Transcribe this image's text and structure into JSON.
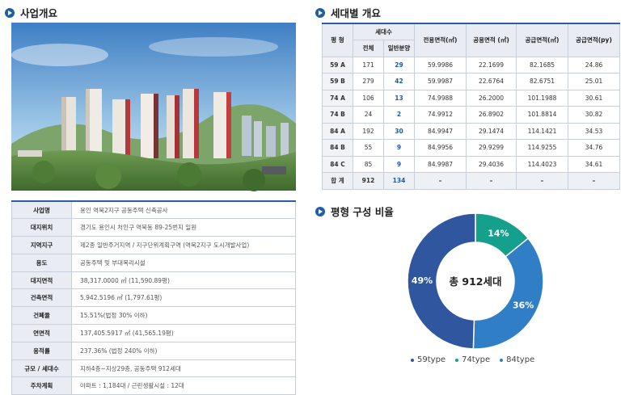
{
  "sections": {
    "overview_title": "사업개요",
    "units_title": "세대별 개요",
    "ratio_title": "평형 구성 비율"
  },
  "overview": {
    "rows": [
      {
        "label": "사업명",
        "value": "용인 역북2지구 공동주택 신축공사"
      },
      {
        "label": "대지위치",
        "value": "경기도 용인시 처인구 역북동 89-25번지 일원"
      },
      {
        "label": "지역지구",
        "value": "제2종 일반주거지역 / 지구단위계획구역 (역북2지구 도시개발사업)"
      },
      {
        "label": "용도",
        "value": "공동주택 및 부대복리시설"
      },
      {
        "label": "대지면적",
        "value": "38,317.0000 ㎡ (11,590.89평)"
      },
      {
        "label": "건축면적",
        "value": "5,942.5196 ㎡ (1,797.61평)"
      },
      {
        "label": "건폐율",
        "value": "15.51%(법정 30% 이하)"
      },
      {
        "label": "연면적",
        "value": "137,405.5917 ㎡ (41,565.19평)"
      },
      {
        "label": "용적률",
        "value": "237.36% (법정 240% 이하)"
      },
      {
        "label": "규모 / 세대수",
        "value": "지하4층~지상29층, 공동주택 912세대"
      },
      {
        "label": "주차계획",
        "value": "아파트 : 1,184대 / 근린생활시설 : 12대"
      }
    ]
  },
  "units": {
    "headers": {
      "type": "평 형",
      "households": "세대수",
      "total": "전체",
      "general": "일반분양",
      "exclusive": "전용면적(㎡)",
      "common": "공용면적 (㎡)",
      "supply": "공급면적(㎡)",
      "supply_py": "공급면적(py)"
    },
    "rows": [
      {
        "type": "59 A",
        "total": "171",
        "general": "29",
        "exclusive": "59.9986",
        "common": "22.1699",
        "supply": "82.1685",
        "supply_py": "24.86"
      },
      {
        "type": "59 B",
        "total": "279",
        "general": "42",
        "exclusive": "59.9987",
        "common": "22.6764",
        "supply": "82.6751",
        "supply_py": "25.01"
      },
      {
        "type": "74 A",
        "total": "106",
        "general": "13",
        "exclusive": "74.9988",
        "common": "26.2000",
        "supply": "101.1988",
        "supply_py": "30.61"
      },
      {
        "type": "74 B",
        "total": "24",
        "general": "2",
        "exclusive": "74.9912",
        "common": "26.8902",
        "supply": "101.8814",
        "supply_py": "30.82"
      },
      {
        "type": "84 A",
        "total": "192",
        "general": "30",
        "exclusive": "84.9947",
        "common": "29.1474",
        "supply": "114.1421",
        "supply_py": "34.53"
      },
      {
        "type": "84 B",
        "total": "55",
        "general": "9",
        "exclusive": "84.9956",
        "common": "29.9299",
        "supply": "114.9255",
        "supply_py": "34.76"
      },
      {
        "type": "84 C",
        "total": "85",
        "general": "9",
        "exclusive": "84.9987",
        "common": "29.4036",
        "supply": "114.4023",
        "supply_py": "34.61"
      }
    ],
    "total_row": {
      "type": "합 계",
      "total": "912",
      "general": "134",
      "exclusive": "–",
      "common": "–",
      "supply": "–",
      "supply_py": "–"
    }
  },
  "chart_data": {
    "type": "pie",
    "categories": [
      "59type",
      "74type",
      "84type"
    ],
    "values": [
      49,
      14,
      36
    ],
    "labels": [
      "49%",
      "14%",
      "36%"
    ],
    "colors": [
      "#2f569f",
      "#14a08d",
      "#2f7ec6"
    ],
    "center_label": "총 912세대",
    "legend_position": "bottom"
  }
}
